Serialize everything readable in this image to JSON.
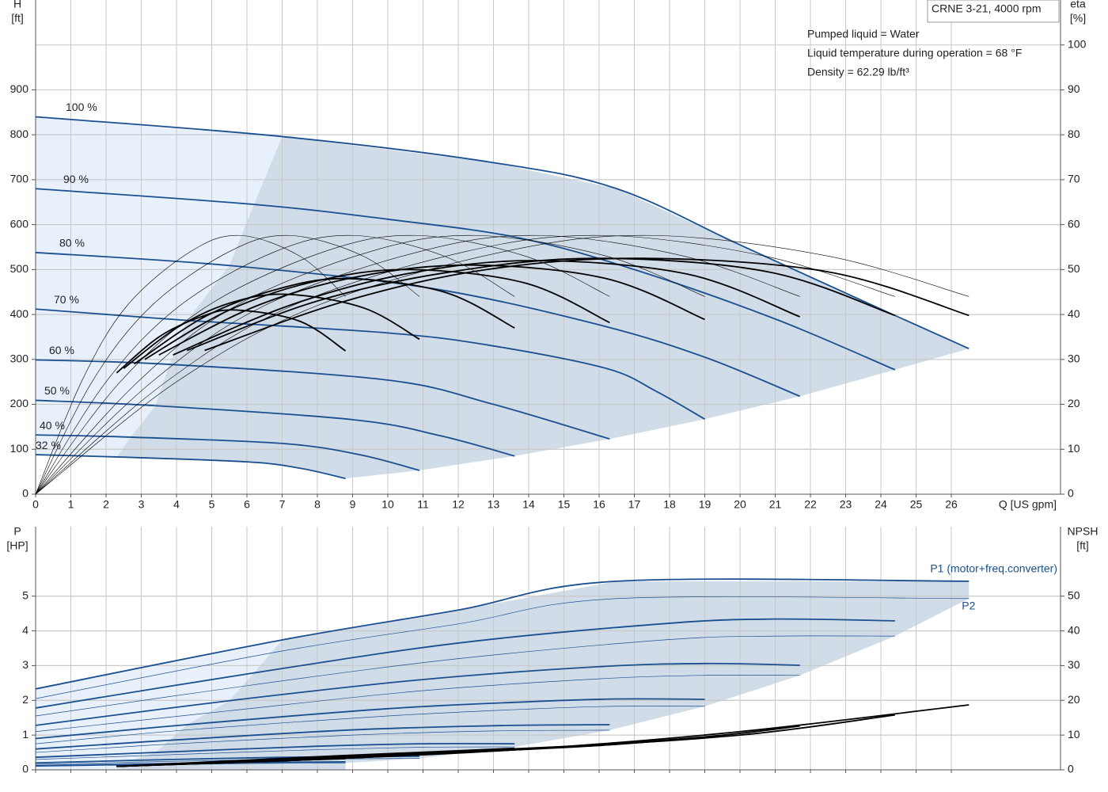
{
  "chart_data": [
    {
      "type": "line",
      "title": "CRNE 3-21, 4000 rpm",
      "annotations": [
        "Pumped liquid = Water",
        "Liquid temperature during operation = 68 °F",
        "Density = 62.29 lb/ft³"
      ],
      "xlabel": "Q [US gpm]",
      "ylabel": "H",
      "yunit": "[ft]",
      "y2label": "eta",
      "y2unit": "[%]",
      "xlim": [
        0,
        29.1
      ],
      "ylim": [
        0,
        1100
      ],
      "y2lim": [
        0,
        110
      ],
      "xticks": [
        0,
        1,
        2,
        3,
        4,
        5,
        6,
        7,
        8,
        9,
        10,
        11,
        12,
        13,
        14,
        15,
        16,
        17,
        18,
        19,
        20,
        21,
        22,
        23,
        24,
        25,
        26
      ],
      "yticks": [
        0,
        100,
        200,
        300,
        400,
        500,
        600,
        700,
        800,
        900
      ],
      "y2ticks": [
        0,
        10,
        20,
        30,
        40,
        50,
        60,
        70,
        80,
        90,
        100
      ],
      "grid": true,
      "series": [
        {
          "name": "100 %",
          "color": "#1b4f8f",
          "linewidth": 1.8,
          "x": [
            0,
            7,
            13,
            16.5,
            20,
            24,
            26.5
          ],
          "values": [
            840,
            796,
            738,
            680,
            555,
            412,
            324
          ]
        },
        {
          "name": "90 %",
          "color": "#1b4f8f",
          "linewidth": 1.8,
          "x": [
            0,
            6.2,
            10,
            13.7,
            17,
            21,
            24.4
          ],
          "values": [
            680,
            645,
            612,
            571,
            500,
            390,
            277
          ]
        },
        {
          "name": "80 %",
          "color": "#1b4f8f",
          "linewidth": 1.8,
          "x": [
            0,
            5.5,
            11.25,
            16,
            19,
            21.7
          ],
          "values": [
            538,
            509,
            458,
            377,
            305,
            218
          ]
        },
        {
          "name": "70 %",
          "color": "#1b4f8f",
          "linewidth": 1.8,
          "x": [
            0,
            4.3,
            10,
            13,
            16.2,
            17.6,
            19
          ],
          "values": [
            412,
            387,
            359,
            330,
            280,
            230,
            167
          ]
        },
        {
          "name": "60 %",
          "color": "#1b4f8f",
          "linewidth": 1.8,
          "x": [
            0,
            3.8,
            10,
            13,
            16.3
          ],
          "values": [
            299,
            289,
            254,
            200,
            123
          ]
        },
        {
          "name": "50 %",
          "color": "#1b4f8f",
          "linewidth": 1.8,
          "x": [
            0,
            3.4,
            9,
            11.5,
            13.6
          ],
          "values": [
            209,
            197,
            166,
            130,
            85
          ]
        },
        {
          "name": "40 %",
          "color": "#1b4f8f",
          "linewidth": 1.8,
          "x": [
            0,
            2.7,
            7,
            9.2,
            10.9
          ],
          "values": [
            132,
            127,
            113,
            88,
            53
          ]
        },
        {
          "name": "32 %",
          "color": "#1b4f8f",
          "linewidth": 1.8,
          "x": [
            0,
            2.3,
            6,
            7.5,
            8.8
          ],
          "values": [
            88,
            83,
            72,
            58,
            35
          ]
        },
        {
          "color": "#000000",
          "linewidth": 0.6,
          "axis": "y2",
          "x": [
            0,
            4,
            8,
            13.3,
            17.5,
            22.5,
            26.5
          ],
          "values": [
            0,
            25,
            42,
            54,
            57.6,
            53,
            44
          ]
        },
        {
          "color": "#000000",
          "linewidth": 0.6,
          "axis": "y2",
          "x": [
            0,
            3.7,
            7.3,
            12.2,
            16.1,
            20.7,
            24.4
          ],
          "values": [
            0,
            25,
            42,
            54,
            57.6,
            53,
            44
          ]
        },
        {
          "color": "#000000",
          "linewidth": 0.6,
          "axis": "y2",
          "x": [
            0,
            3.3,
            6.5,
            10.9,
            14.3,
            18.4,
            21.7
          ],
          "values": [
            0,
            25,
            42,
            54,
            57.6,
            53,
            44
          ]
        },
        {
          "color": "#000000",
          "linewidth": 0.6,
          "axis": "y2",
          "x": [
            0,
            2.9,
            5.7,
            9.5,
            12.5,
            16.2,
            19
          ],
          "values": [
            0,
            25,
            42,
            54,
            57.6,
            53,
            44
          ]
        },
        {
          "color": "#000000",
          "linewidth": 0.6,
          "axis": "y2",
          "x": [
            0,
            2.4,
            4.9,
            8.2,
            10.8,
            13.9,
            16.3
          ],
          "values": [
            0,
            25,
            42,
            54,
            57.6,
            53,
            44
          ]
        },
        {
          "color": "#000000",
          "linewidth": 0.6,
          "axis": "y2",
          "x": [
            0,
            2,
            4.1,
            6.8,
            9,
            11.6,
            13.6
          ],
          "values": [
            0,
            25,
            42,
            54,
            57.6,
            53,
            44
          ]
        },
        {
          "color": "#000000",
          "linewidth": 0.6,
          "axis": "y2",
          "x": [
            0,
            1.6,
            3.3,
            5.5,
            7.2,
            9.3,
            10.9
          ],
          "values": [
            0,
            25,
            42,
            54,
            57.6,
            53,
            44
          ]
        },
        {
          "color": "#000000",
          "linewidth": 0.6,
          "axis": "y2",
          "x": [
            0,
            1.3,
            2.6,
            4.4,
            5.8,
            7.5,
            8.8
          ],
          "values": [
            0,
            25,
            42,
            54,
            57.6,
            53,
            44
          ]
        },
        {
          "color": "#000000",
          "linewidth": 1.8,
          "axis": "y2",
          "x": [
            4.8,
            8.8,
            12.8,
            17.2,
            22.5,
            26.5
          ],
          "values": [
            32,
            43,
            50,
            52.5,
            49.5,
            39.8
          ]
        },
        {
          "color": "#000000",
          "linewidth": 1.8,
          "axis": "y2",
          "x": [
            4.3,
            8,
            11.8,
            15.9,
            20.8,
            24.4
          ],
          "values": [
            32,
            43,
            49.5,
            52.5,
            49.5,
            39.8
          ]
        },
        {
          "color": "#000000",
          "linewidth": 1.8,
          "axis": "y2",
          "x": [
            3.9,
            7.2,
            10.5,
            14.1,
            18.5,
            21.7
          ],
          "values": [
            31,
            42,
            49,
            52,
            49,
            39.5
          ]
        },
        {
          "color": "#000000",
          "linewidth": 1.8,
          "axis": "y2",
          "x": [
            3.5,
            6.3,
            9.2,
            12.4,
            16.2,
            19
          ],
          "values": [
            31,
            42,
            48.5,
            51,
            48,
            38.9
          ]
        },
        {
          "color": "#000000",
          "linewidth": 1.8,
          "axis": "y2",
          "x": [
            3.1,
            5.5,
            8,
            10.6,
            13.9,
            16.3
          ],
          "values": [
            30,
            41,
            47.5,
            50,
            47,
            38.2
          ]
        },
        {
          "color": "#000000",
          "linewidth": 1.8,
          "axis": "y2",
          "x": [
            2.8,
            4.8,
            6.8,
            8.8,
            11.6,
            13.6
          ],
          "values": [
            29,
            39.5,
            45.5,
            48,
            45,
            37
          ]
        },
        {
          "color": "#000000",
          "linewidth": 1.8,
          "axis": "y2",
          "x": [
            2.5,
            4,
            5.5,
            7.1,
            9.3,
            10.9
          ],
          "values": [
            28,
            37,
            42.5,
            44.5,
            41.5,
            34.5
          ]
        },
        {
          "color": "#000000",
          "linewidth": 1.8,
          "axis": "y2",
          "x": [
            2.3,
            3.5,
            4.7,
            5.7,
            7.5,
            8.8
          ],
          "values": [
            27,
            35,
            39.5,
            41,
            38.5,
            31.9
          ]
        }
      ]
    },
    {
      "type": "line",
      "ylabel": "P",
      "yunit": "[HP]",
      "y2label": "NPSH",
      "y2unit": "[ft]",
      "xlim": [
        0,
        29.1
      ],
      "ylim": [
        0,
        7
      ],
      "y2lim": [
        0,
        70
      ],
      "yticks": [
        0,
        1,
        2,
        3,
        4,
        5
      ],
      "y2ticks": [
        0,
        10,
        20,
        30,
        40,
        50
      ],
      "grid": true,
      "series": [
        {
          "name": "P1 (motor+freq.converter)",
          "color": "#1b4f8f",
          "linewidth": 1.8,
          "x": [
            0,
            7,
            12,
            16.5,
            26.5
          ],
          "values": [
            2.33,
            3.74,
            4.6,
            5.43,
            5.43
          ]
        },
        {
          "color": "#1b4f8f",
          "linewidth": 1.8,
          "x": [
            0,
            6.2,
            12,
            18,
            21,
            24.4
          ],
          "values": [
            1.78,
            2.79,
            3.65,
            4.22,
            4.34,
            4.29
          ]
        },
        {
          "color": "#1b4f8f",
          "linewidth": 1.8,
          "x": [
            0,
            5.5,
            11,
            16,
            19,
            21.7
          ],
          "values": [
            1.28,
            1.99,
            2.6,
            2.97,
            3.06,
            3.01
          ]
        },
        {
          "color": "#1b4f8f",
          "linewidth": 1.8,
          "x": [
            0,
            4.3,
            10,
            14,
            16.5,
            19
          ],
          "values": [
            0.9,
            1.3,
            1.76,
            1.96,
            2.04,
            2.03
          ]
        },
        {
          "color": "#1b4f8f",
          "linewidth": 1.8,
          "x": [
            0,
            3.8,
            9,
            13,
            16.3
          ],
          "values": [
            0.6,
            0.85,
            1.15,
            1.27,
            1.3
          ]
        },
        {
          "color": "#1b4f8f",
          "linewidth": 1.8,
          "x": [
            0,
            3.4,
            8,
            11,
            13.6
          ],
          "values": [
            0.36,
            0.5,
            0.68,
            0.75,
            0.75
          ]
        },
        {
          "color": "#1b4f8f",
          "linewidth": 1.8,
          "x": [
            0,
            2.7,
            7,
            10.9
          ],
          "values": [
            0.2,
            0.27,
            0.36,
            0.39
          ]
        },
        {
          "color": "#1b4f8f",
          "linewidth": 1.8,
          "x": [
            0,
            2.3,
            6,
            8.8
          ],
          "values": [
            0.12,
            0.16,
            0.21,
            0.23
          ]
        },
        {
          "name": "P2",
          "color": "#1b4f8f",
          "linewidth": 0.7,
          "x": [
            0,
            7,
            12,
            16.5,
            26.5
          ],
          "values": [
            2.05,
            3.42,
            4.2,
            4.93,
            4.93
          ]
        },
        {
          "color": "#1b4f8f",
          "linewidth": 0.7,
          "x": [
            0,
            6.2,
            12,
            18,
            21,
            24.4
          ],
          "values": [
            1.55,
            2.45,
            3.2,
            3.75,
            3.85,
            3.85
          ]
        },
        {
          "color": "#1b4f8f",
          "linewidth": 0.7,
          "x": [
            0,
            5.5,
            11,
            16,
            19,
            21.7
          ],
          "values": [
            1.1,
            1.7,
            2.28,
            2.62,
            2.72,
            2.72
          ]
        },
        {
          "color": "#1b4f8f",
          "linewidth": 0.7,
          "x": [
            0,
            4.3,
            10,
            14,
            16.5,
            19
          ],
          "values": [
            0.75,
            1.15,
            1.55,
            1.75,
            1.83,
            1.83
          ]
        },
        {
          "color": "#1b4f8f",
          "linewidth": 0.7,
          "x": [
            0,
            3.8,
            9,
            13,
            16.3
          ],
          "values": [
            0.5,
            0.74,
            1.0,
            1.12,
            1.14
          ]
        },
        {
          "color": "#1b4f8f",
          "linewidth": 0.7,
          "x": [
            0,
            3.4,
            8,
            11,
            13.6
          ],
          "values": [
            0.3,
            0.42,
            0.58,
            0.65,
            0.66
          ]
        },
        {
          "color": "#1b4f8f",
          "linewidth": 0.7,
          "x": [
            0,
            2.7,
            7,
            10.9
          ],
          "values": [
            0.16,
            0.22,
            0.3,
            0.33
          ]
        },
        {
          "color": "#1b4f8f",
          "linewidth": 0.7,
          "x": [
            0,
            2.3,
            6,
            8.8
          ],
          "values": [
            0.1,
            0.13,
            0.18,
            0.2
          ]
        },
        {
          "color": "#000000",
          "linewidth": 1.8,
          "axis": "y2",
          "x": [
            2.3,
            8,
            14,
            20,
            26.5
          ],
          "values": [
            1,
            3,
            6,
            11,
            18.7
          ]
        },
        {
          "color": "#000000",
          "linewidth": 1.8,
          "axis": "y2",
          "x": [
            2.3,
            8,
            14,
            20,
            24.4
          ],
          "values": [
            1,
            3,
            6,
            10,
            15.8
          ]
        },
        {
          "color": "#000000",
          "linewidth": 1.8,
          "axis": "y2",
          "x": [
            2.3,
            8,
            14,
            19,
            21.7
          ],
          "values": [
            1,
            3,
            6,
            9.5,
            12.6
          ]
        },
        {
          "color": "#000000",
          "linewidth": 1.8,
          "axis": "y2",
          "x": [
            2.3,
            7,
            12,
            16,
            19
          ],
          "values": [
            1,
            2.8,
            5,
            7,
            9.4
          ]
        },
        {
          "color": "#000000",
          "linewidth": 1.8,
          "axis": "y2",
          "x": [
            2.3,
            6,
            10,
            13.5,
            16.3
          ],
          "values": [
            1,
            2.5,
            4.3,
            6,
            7.3
          ]
        },
        {
          "color": "#000000",
          "linewidth": 1.8,
          "axis": "y2",
          "x": [
            2.3,
            5,
            8.5,
            11.5,
            13.6
          ],
          "values": [
            1,
            2.3,
            4,
            5.3,
            6.2
          ]
        },
        {
          "color": "#000000",
          "linewidth": 1.8,
          "axis": "y2",
          "x": [
            2.3,
            5,
            8,
            10.9
          ],
          "values": [
            1,
            2,
            3.2,
            4.3
          ]
        },
        {
          "color": "#000000",
          "linewidth": 1.8,
          "axis": "y2",
          "x": [
            2.3,
            4.5,
            6.8,
            8.8
          ],
          "values": [
            1,
            1.8,
            2.6,
            3.2
          ]
        }
      ]
    }
  ]
}
